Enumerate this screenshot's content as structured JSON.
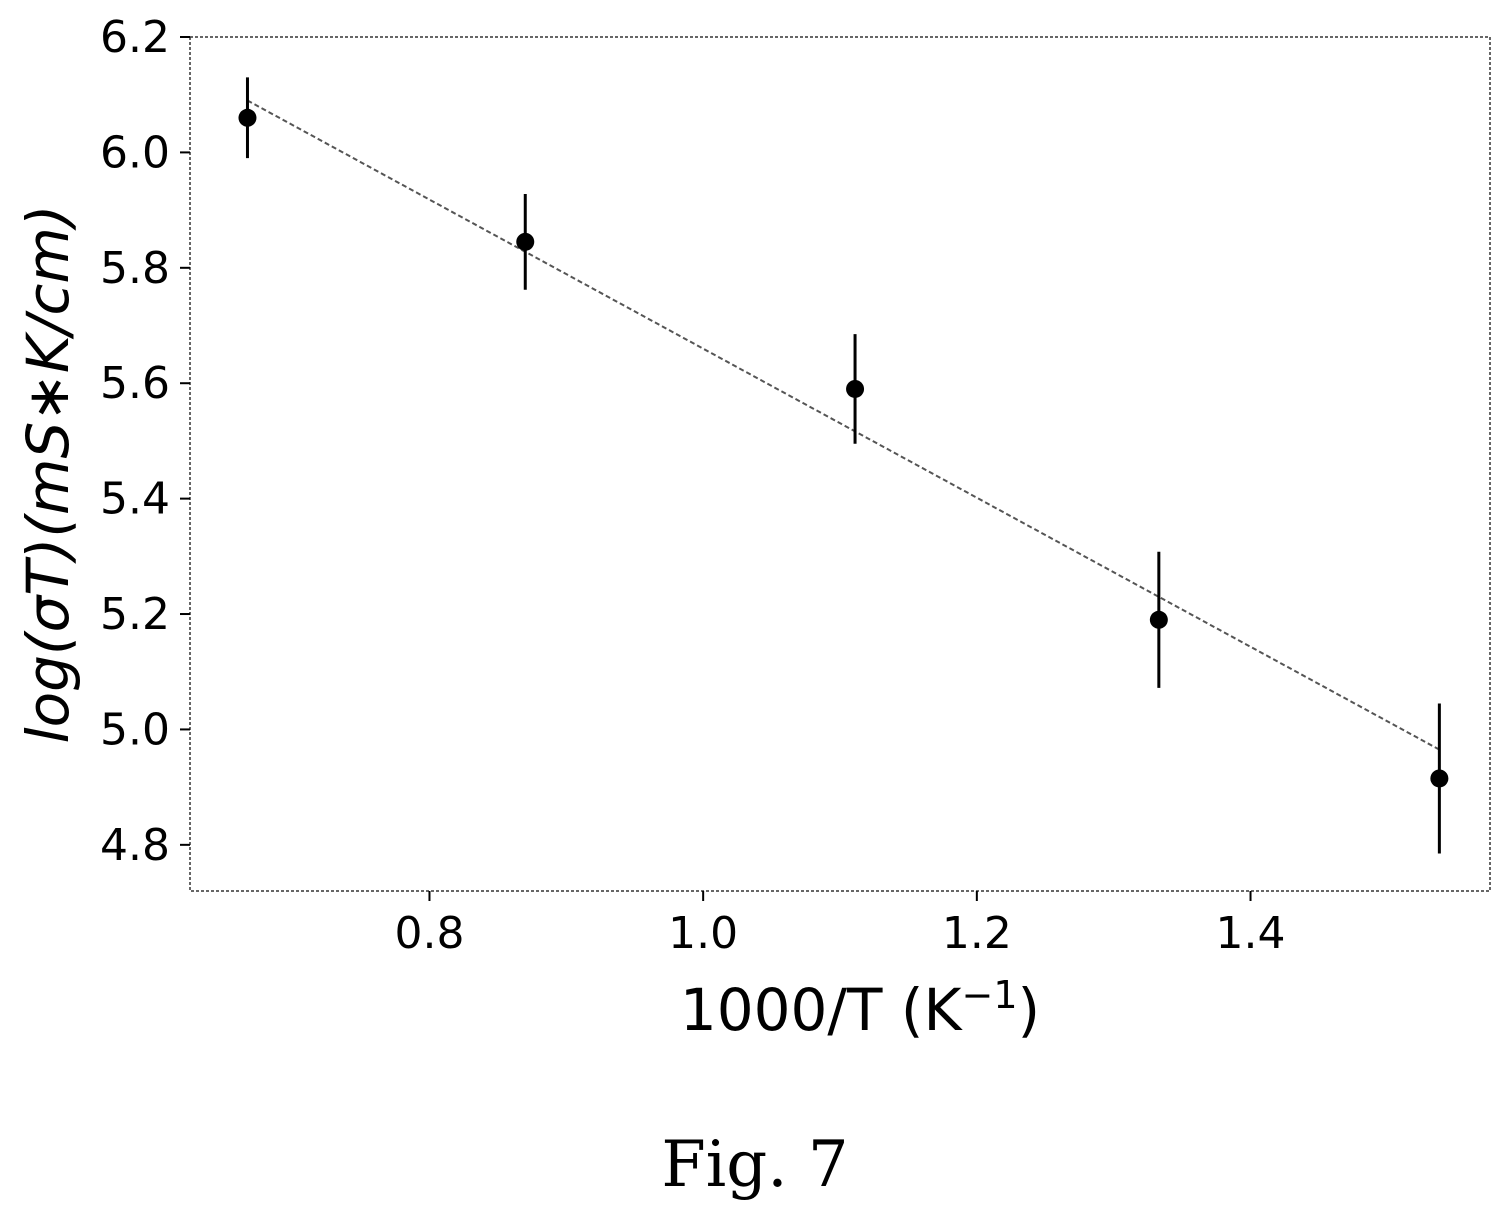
{
  "figure_caption": "Fig. 7",
  "colors": {
    "marker": "#000000",
    "fit_line": "#555555",
    "frame": "#333333"
  },
  "chart_data": {
    "type": "scatter",
    "title": "",
    "xlabel_main": "1000/T (K",
    "xlabel_sup": "−1",
    "xlabel_close": ")",
    "ylabel": "log(σT)(mS∗K/cm)",
    "xlim": [
      0.625,
      1.575
    ],
    "ylim": [
      4.72,
      6.2
    ],
    "xticks": [
      0.8,
      1.0,
      1.2,
      1.4
    ],
    "xtick_labels": [
      "0.8",
      "1.0",
      "1.2",
      "1.4"
    ],
    "yticks": [
      4.8,
      5.0,
      5.2,
      5.4,
      5.6,
      5.8,
      6.0,
      6.2
    ],
    "ytick_labels": [
      "4.8",
      "5.0",
      "5.2",
      "5.4",
      "5.6",
      "5.8",
      "6.0",
      "6.2"
    ],
    "grid": false,
    "points": [
      {
        "x": 0.667,
        "y": 6.06,
        "err": 0.07
      },
      {
        "x": 0.87,
        "y": 5.845,
        "err": 0.083
      },
      {
        "x": 1.111,
        "y": 5.59,
        "err": 0.095
      },
      {
        "x": 1.333,
        "y": 5.19,
        "err": 0.118
      },
      {
        "x": 1.538,
        "y": 4.915,
        "err": 0.13
      }
    ],
    "fit_line": {
      "style": "dashed",
      "x": [
        0.667,
        1.538
      ],
      "y": [
        6.09,
        4.965
      ]
    }
  }
}
